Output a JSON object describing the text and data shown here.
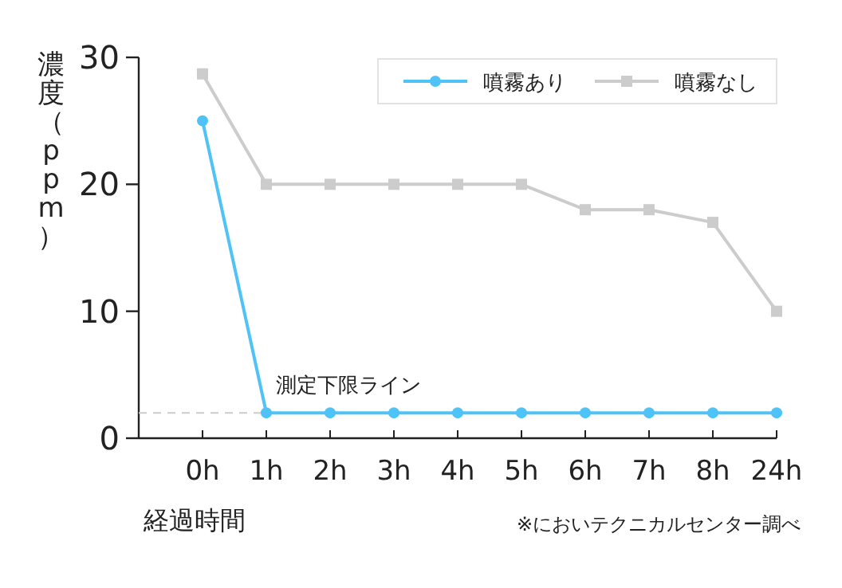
{
  "chart_data": {
    "type": "line",
    "categories": [
      "0h",
      "1h",
      "2h",
      "3h",
      "4h",
      "5h",
      "6h",
      "7h",
      "8h",
      "24h"
    ],
    "series": [
      {
        "name": "噴霧あり",
        "color": "#4fc3f7",
        "marker": "circle",
        "values": [
          25,
          2,
          2,
          2,
          2,
          2,
          2,
          2,
          2,
          2
        ]
      },
      {
        "name": "噴霧なし",
        "color": "#cccccc",
        "marker": "square",
        "values": [
          28.7,
          20,
          20,
          20,
          20,
          20,
          18,
          18,
          17,
          10
        ]
      }
    ],
    "ylim": [
      0,
      30
    ],
    "yticks": [
      0,
      10,
      20,
      30
    ],
    "xlabel": "経過時間",
    "ylabel": "濃度（ppm）",
    "ref_lines": [
      {
        "axis": "y",
        "value": 2,
        "label": "測定下限ライン",
        "color": "#cccccc",
        "line_style": "dashed"
      }
    ],
    "legend": "top right",
    "annotations": [
      "※においテクニカルセンター調べ"
    ]
  }
}
